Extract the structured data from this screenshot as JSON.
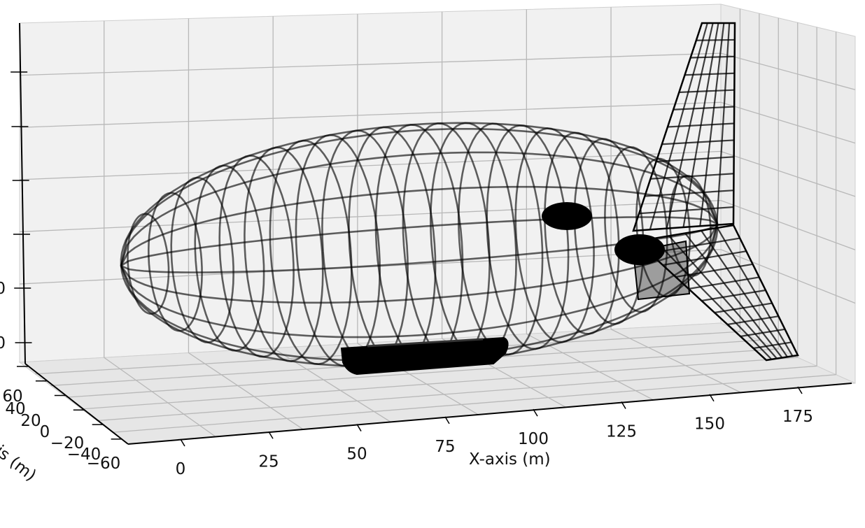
{
  "figure": {
    "x_axis": {
      "label": "X-axis (m)",
      "ticks": [
        "0",
        "25",
        "50",
        "75",
        "100",
        "125",
        "150",
        "175"
      ]
    },
    "y_axis": {
      "label": "is (m)",
      "ticks": [
        "60",
        "40",
        "20",
        "0",
        "−20",
        "−40",
        "−60"
      ]
    },
    "z_axis": {
      "label": "",
      "ticks": [
        "",
        "",
        "",
        "",
        "0",
        "0"
      ]
    },
    "colors": {
      "pane": "#f1f1f1",
      "grid": "#b8b8b8",
      "wire": "#000000",
      "solid": "#000000"
    },
    "objects": [
      "hull-wireframe",
      "gondola",
      "engine-pod-upper",
      "engine-pod-lower",
      "vertical-tail-fin",
      "horizontal-tail-fin"
    ]
  }
}
